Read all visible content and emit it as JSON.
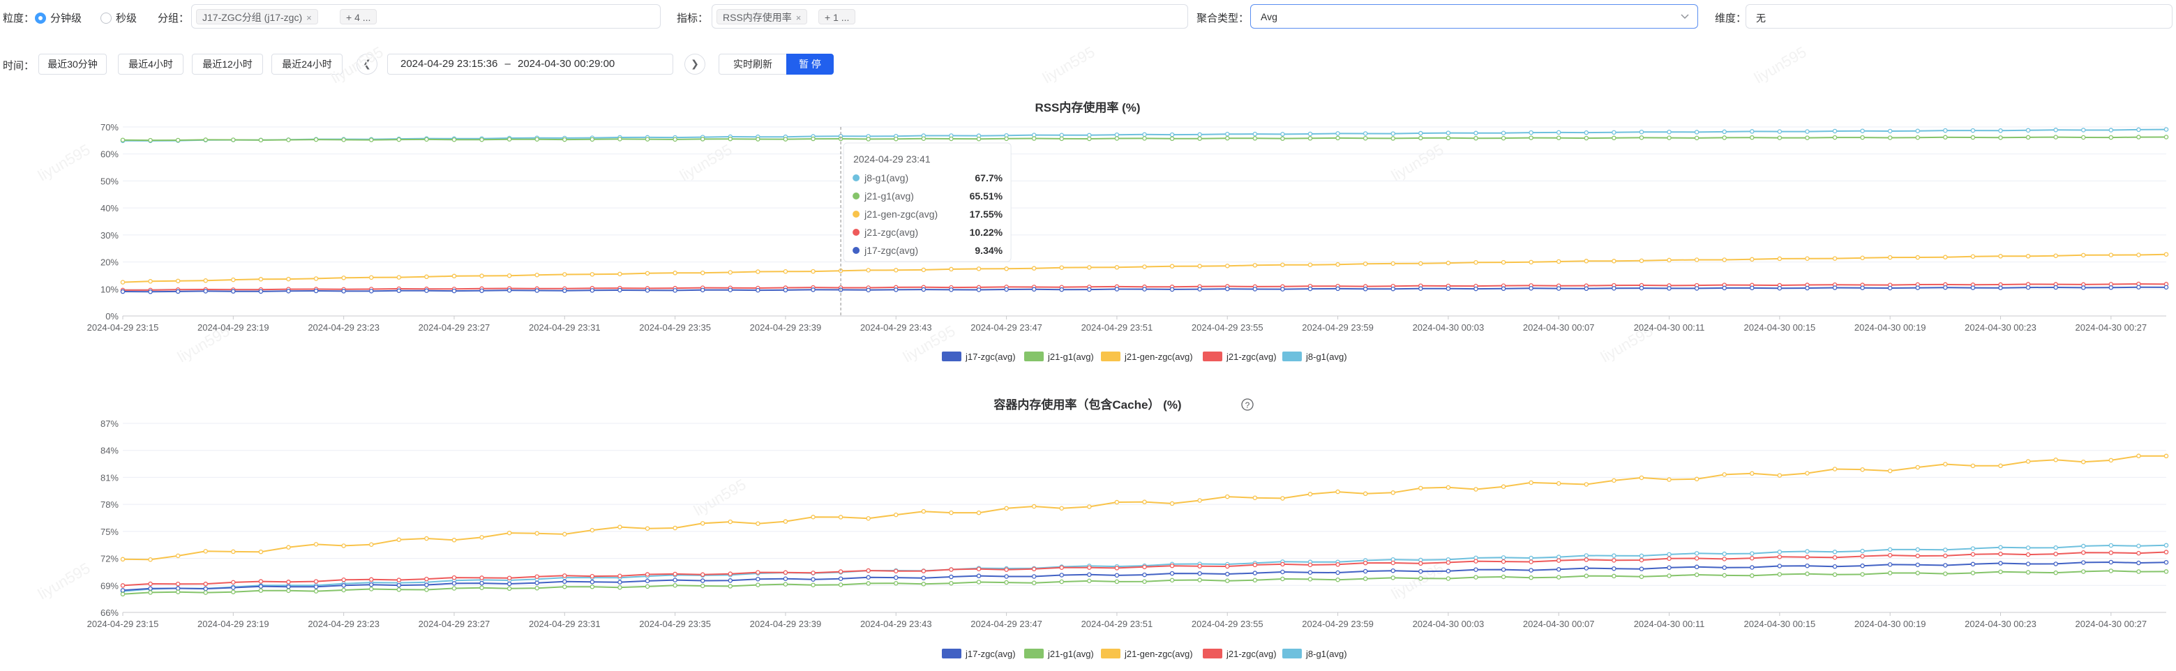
{
  "toolbar": {
    "granularity_label": "粒度：",
    "granularity_options": [
      "分钟级",
      "秒级"
    ],
    "group_label": "分组：",
    "group_tags": [
      "J17-ZGC分组 (j17-zgc)"
    ],
    "group_more": "+ 4 ...",
    "metric_label": "指标：",
    "metric_tags": [
      "RSS内存使用率"
    ],
    "metric_more": "+ 1 ...",
    "agg_label": "聚合类型：",
    "agg_value": "Avg",
    "dim_label": "维度：",
    "dim_value": "无"
  },
  "timebar": {
    "label": "时间：",
    "quick": [
      "最近30分钟",
      "最近4小时",
      "最近12小时",
      "最近24小时"
    ],
    "range_start": "2024-04-29 23:15:36",
    "range_sep": "–",
    "range_end": "2024-04-30 00:29:00",
    "realtime_label": "实时刷新",
    "pause_label": "暂 停"
  },
  "colors": {
    "j17-zgc": "#4161c4",
    "j21-g1": "#85c46a",
    "j21-gen-zgc": "#f9c34a",
    "j21-zgc": "#ee5a5a",
    "j8-g1": "#6ec0de",
    "primary": "#2160ee",
    "focus": "#5a8ef0"
  },
  "watermark": "liyun595",
  "x_ticks": [
    "2024-04-29 23:15",
    "2024-04-29 23:19",
    "2024-04-29 23:23",
    "2024-04-29 23:27",
    "2024-04-29 23:31",
    "2024-04-29 23:35",
    "2024-04-29 23:39",
    "2024-04-29 23:43",
    "2024-04-29 23:47",
    "2024-04-29 23:51",
    "2024-04-29 23:55",
    "2024-04-29 23:59",
    "2024-04-30 00:03",
    "2024-04-30 00:07",
    "2024-04-30 00:11",
    "2024-04-30 00:15",
    "2024-04-30 00:19",
    "2024-04-30 00:23",
    "2024-04-30 00:27"
  ],
  "chart_data": [
    {
      "type": "line",
      "title": "RSS内存使用率 (%)",
      "ylim": [
        0,
        70
      ],
      "y_ticks": [
        "0%",
        "10%",
        "20%",
        "30%",
        "40%",
        "50%",
        "60%",
        "70%"
      ],
      "legend": [
        "j17-zgc(avg)",
        "j21-g1(avg)",
        "j21-gen-zgc(avg)",
        "j21-zgc(avg)",
        "j8-g1(avg)"
      ],
      "series": [
        {
          "name": "j8-g1(avg)",
          "key": "j8-g1",
          "start": 64.8,
          "end": 69.0
        },
        {
          "name": "j21-g1(avg)",
          "key": "j21-g1",
          "start": 65.1,
          "end": 66.2
        },
        {
          "name": "j21-gen-zgc(avg)",
          "key": "j21-gen-zgc",
          "start": 12.5,
          "end": 22.8
        },
        {
          "name": "j21-zgc(avg)",
          "key": "j21-zgc",
          "start": 9.6,
          "end": 11.8
        },
        {
          "name": "j17-zgc(avg)",
          "key": "j17-zgc",
          "start": 9.0,
          "end": 10.6
        }
      ],
      "tooltip": {
        "time": "2024-04-29 23:41",
        "rows": [
          {
            "name": "j8-g1(avg)",
            "value": "67.7%",
            "key": "j8-g1"
          },
          {
            "name": "j21-g1(avg)",
            "value": "65.51%",
            "key": "j21-g1"
          },
          {
            "name": "j21-gen-zgc(avg)",
            "value": "17.55%",
            "key": "j21-gen-zgc"
          },
          {
            "name": "j21-zgc(avg)",
            "value": "10.22%",
            "key": "j21-zgc"
          },
          {
            "name": "j17-zgc(avg)",
            "value": "9.34%",
            "key": "j17-zgc"
          }
        ]
      }
    },
    {
      "type": "line",
      "title": "容器内存使用率（包含Cache） (%)",
      "ylim": [
        66,
        87
      ],
      "y_ticks": [
        "66%",
        "69%",
        "72%",
        "75%",
        "78%",
        "81%",
        "84%",
        "87%"
      ],
      "legend": [
        "j17-zgc(avg)",
        "j21-g1(avg)",
        "j21-gen-zgc(avg)",
        "j21-zgc(avg)",
        "j8-g1(avg)"
      ],
      "series": [
        {
          "name": "j21-gen-zgc(avg)",
          "key": "j21-gen-zgc",
          "start": 71.8,
          "end": 83.3
        },
        {
          "name": "j8-g1(avg)",
          "key": "j8-g1",
          "start": 68.4,
          "end": 73.5
        },
        {
          "name": "j21-zgc(avg)",
          "key": "j21-zgc",
          "start": 69.0,
          "end": 72.7
        },
        {
          "name": "j17-zgc(avg)",
          "key": "j17-zgc",
          "start": 68.5,
          "end": 71.6
        },
        {
          "name": "j21-g1(avg)",
          "key": "j21-g1",
          "start": 68.1,
          "end": 70.6
        }
      ]
    }
  ]
}
